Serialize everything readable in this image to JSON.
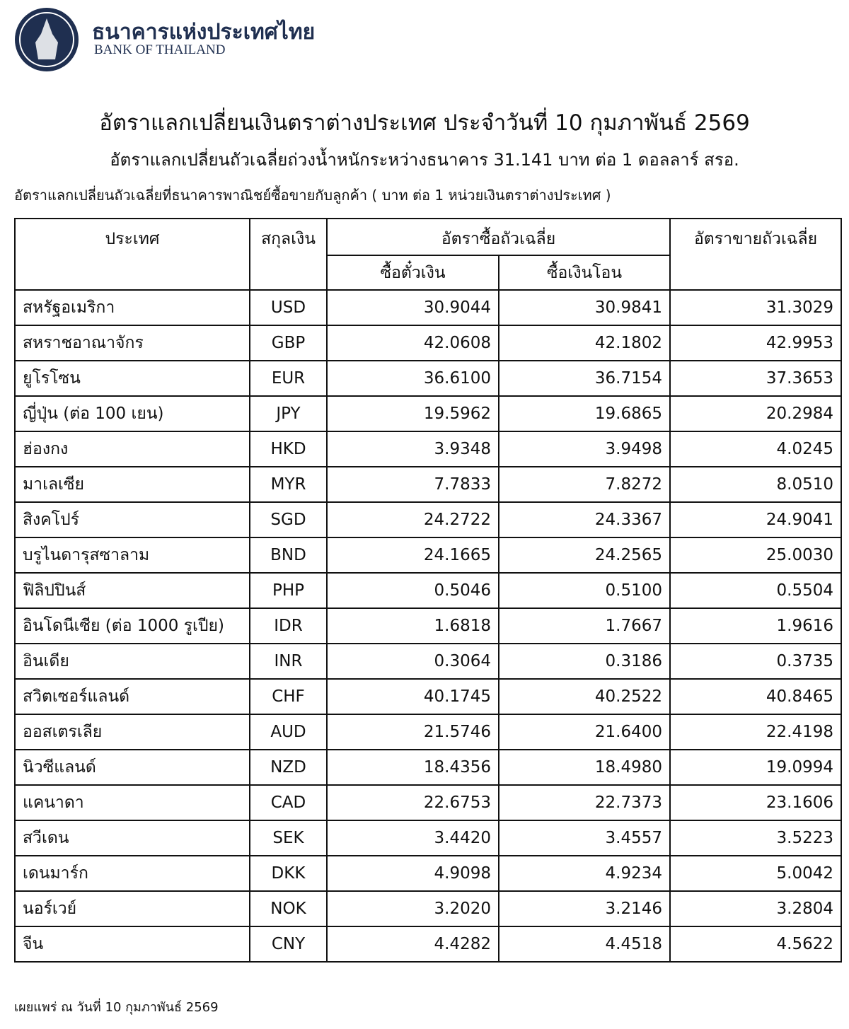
{
  "header": {
    "org_name_th": "ธนาคารแห่งประเทศไทย",
    "org_name_en": "BANK OF THAILAND"
  },
  "title": "อัตราแลกเปลี่ยนเงินตราต่างประเทศ ประจำวันที่ 10 กุมภาพันธ์ 2569",
  "subtitle": "อัตราแลกเปลี่ยนถัวเฉลี่ยถ่วงน้ำหนักระหว่างธนาคาร 31.141 บาท ต่อ 1 ดอลลาร์ สรอ.",
  "note": "อัตราแลกเปลี่ยนถัวเฉลี่ยที่ธนาคารพาณิชย์ซื้อขายกับลูกค้า ( บาท ต่อ 1 หน่วยเงินตราต่างประเทศ )",
  "table": {
    "columns": {
      "country": "ประเทศ",
      "currency": "สกุลเงิน",
      "buying": "อัตราซื้อถัวเฉลี่ย",
      "sight_bill": "ซื้อตั๋วเงิน",
      "transfer": "ซื้อเงินโอน",
      "selling": "อัตราขายถัวเฉลี่ย"
    },
    "rows": [
      [
        "สหรัฐอเมริกา",
        "USD",
        "30.9044",
        "30.9841",
        "31.3029"
      ],
      [
        "สหราชอาณาจักร",
        "GBP",
        "42.0608",
        "42.1802",
        "42.9953"
      ],
      [
        "ยูโรโซน",
        "EUR",
        "36.6100",
        "36.7154",
        "37.3653"
      ],
      [
        "ญี่ปุ่น (ต่อ 100 เยน)",
        "JPY",
        "19.5962",
        "19.6865",
        "20.2984"
      ],
      [
        "ฮ่องกง",
        "HKD",
        "3.9348",
        "3.9498",
        "4.0245"
      ],
      [
        "มาเลเซีย",
        "MYR",
        "7.7833",
        "7.8272",
        "8.0510"
      ],
      [
        "สิงคโปร์",
        "SGD",
        "24.2722",
        "24.3367",
        "24.9041"
      ],
      [
        "บรูไนดารุสซาลาม",
        "BND",
        "24.1665",
        "24.2565",
        "25.0030"
      ],
      [
        "ฟิลิปปินส์",
        "PHP",
        "0.5046",
        "0.5100",
        "0.5504"
      ],
      [
        "อินโดนีเซีย (ต่อ 1000 รูเปีย)",
        "IDR",
        "1.6818",
        "1.7667",
        "1.9616"
      ],
      [
        "อินเดีย",
        "INR",
        "0.3064",
        "0.3186",
        "0.3735"
      ],
      [
        "สวิตเซอร์แลนด์",
        "CHF",
        "40.1745",
        "40.2522",
        "40.8465"
      ],
      [
        "ออสเตรเลีย",
        "AUD",
        "21.5746",
        "21.6400",
        "22.4198"
      ],
      [
        "นิวซีแลนด์",
        "NZD",
        "18.4356",
        "18.4980",
        "19.0994"
      ],
      [
        "แคนาดา",
        "CAD",
        "22.6753",
        "22.7373",
        "23.1606"
      ],
      [
        "สวีเดน",
        "SEK",
        "3.4420",
        "3.4557",
        "3.5223"
      ],
      [
        "เดนมาร์ก",
        "DKK",
        "4.9098",
        "4.9234",
        "5.0042"
      ],
      [
        "นอร์เวย์",
        "NOK",
        "3.2020",
        "3.2146",
        "3.2804"
      ],
      [
        "จีน",
        "CNY",
        "4.4282",
        "4.4518",
        "4.5622"
      ]
    ]
  },
  "footer": "เผยแพร่ ณ วันที่ 10 กุมภาพันธ์ 2569"
}
